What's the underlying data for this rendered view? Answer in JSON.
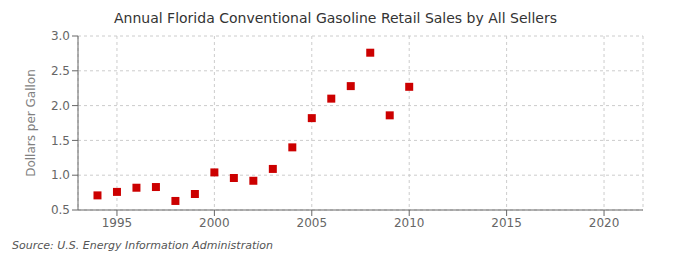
{
  "chart_data": {
    "type": "scatter",
    "title": "Annual Florida Conventional Gasoline Retail Sales by All Sellers",
    "ylabel": "Dollars per Gallon",
    "annotations": [
      "Source: U.S. Energy Information Administration"
    ],
    "x": [
      1994,
      1995,
      1996,
      1997,
      1998,
      1999,
      2000,
      2001,
      2002,
      2003,
      2004,
      2005,
      2006,
      2007,
      2008,
      2009,
      2010
    ],
    "values": [
      0.71,
      0.76,
      0.82,
      0.83,
      0.63,
      0.73,
      1.04,
      0.96,
      0.92,
      1.09,
      1.4,
      1.82,
      2.1,
      2.28,
      2.76,
      1.86,
      2.27
    ],
    "color": "#cc0000",
    "marker": "square",
    "xlim": [
      1993,
      2022
    ],
    "ylim": [
      0.5,
      3.0
    ],
    "xticks": [
      1995,
      2000,
      2005,
      2010,
      2015,
      2020
    ],
    "yticks": [
      0.5,
      {
        "value": 1.0,
        "label": "1.0"
      },
      1.5,
      {
        "value": 2.0,
        "label": "2.0"
      },
      2.5,
      {
        "value": 3.0,
        "label": "3.0"
      }
    ],
    "grid": true
  }
}
